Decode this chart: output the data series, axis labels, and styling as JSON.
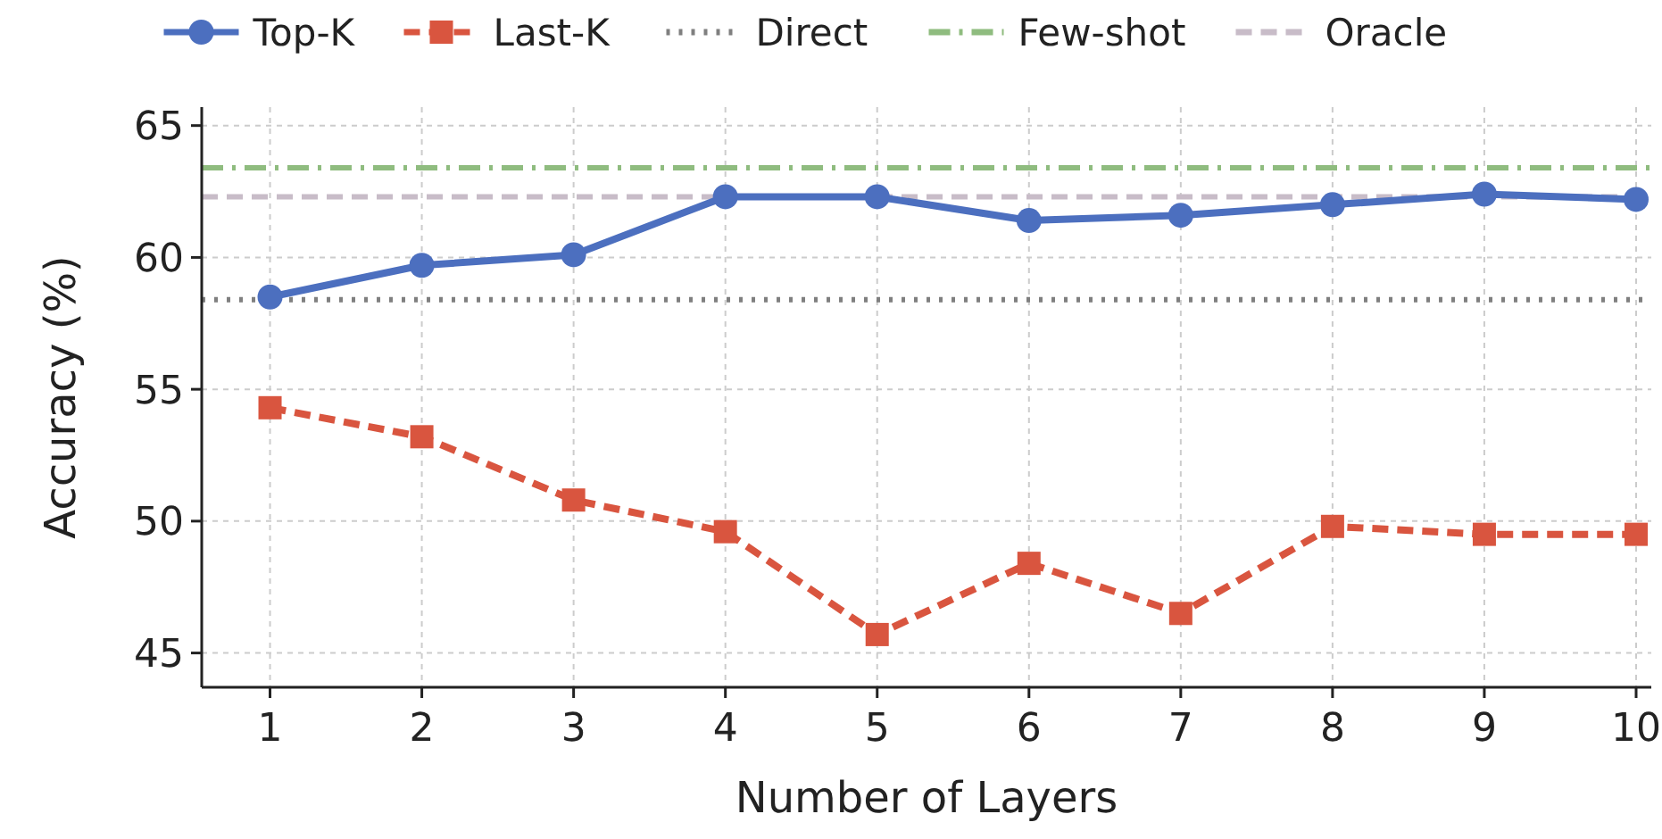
{
  "chart_data": {
    "type": "line",
    "xlabel": "Number of Layers",
    "ylabel": "Accuracy (%)",
    "x": [
      1,
      2,
      3,
      4,
      5,
      6,
      7,
      8,
      9,
      10
    ],
    "series": [
      {
        "name": "Top-K",
        "color": "#4c6fbf",
        "marker": "circle",
        "line_style": "solid",
        "values": [
          58.5,
          59.7,
          60.1,
          62.3,
          62.3,
          61.4,
          61.6,
          62.0,
          62.4,
          62.2
        ]
      },
      {
        "name": "Last-K",
        "color": "#d9553f",
        "marker": "square",
        "line_style": "dashed",
        "values": [
          54.3,
          53.2,
          50.8,
          49.6,
          45.7,
          48.4,
          46.5,
          49.8,
          49.5,
          49.5
        ]
      }
    ],
    "ref_lines": [
      {
        "axis": "y",
        "value": 58.4,
        "label": "Direct",
        "color": "#7f7f7f",
        "line_style": "dotted"
      },
      {
        "axis": "y",
        "value": 63.4,
        "label": "Few-shot",
        "color": "#8fbc7f",
        "line_style": "dashdot"
      },
      {
        "axis": "y",
        "value": 62.3,
        "label": "Oracle",
        "color": "#c8bcc8",
        "line_style": "dashed"
      }
    ],
    "xlim": [
      0.55,
      10.1
    ],
    "xticks": [
      1,
      2,
      3,
      4,
      5,
      6,
      7,
      8,
      9,
      10
    ],
    "ylim": [
      43.7,
      65.7
    ],
    "yticks": [
      45,
      50,
      55,
      60,
      65
    ],
    "grid": true,
    "legend": "top"
  }
}
